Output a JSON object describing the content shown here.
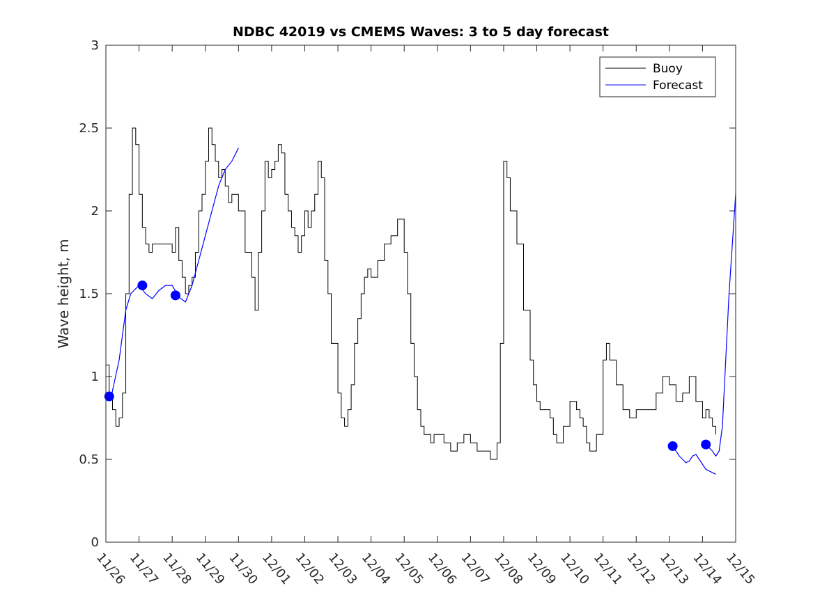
{
  "chart_data": {
    "type": "line",
    "title": "NDBC 42019 vs CMEMS Waves: 3 to 5 day forecast",
    "xlabel": "",
    "ylabel": "Wave height, m",
    "x_unit": "days since 11/26",
    "xlim": [
      0,
      19
    ],
    "ylim": [
      0,
      3
    ],
    "yticks": [
      0,
      0.5,
      1,
      1.5,
      2,
      2.5,
      3
    ],
    "ytick_labels": [
      "0",
      "0.5",
      "1",
      "1.5",
      "2",
      "2.5",
      "3"
    ],
    "xticks": [
      0,
      1,
      2,
      3,
      4,
      5,
      6,
      7,
      8,
      9,
      10,
      11,
      12,
      13,
      14,
      15,
      16,
      17,
      18,
      19
    ],
    "xtick_labels": [
      "11/26",
      "11/27",
      "11/28",
      "11/29",
      "11/30",
      "12/01",
      "12/02",
      "12/03",
      "12/04",
      "12/05",
      "12/06",
      "12/07",
      "12/08",
      "12/09",
      "12/10",
      "12/11",
      "12/12",
      "12/13",
      "12/14",
      "12/15"
    ],
    "grid": false,
    "legend": {
      "position": "top-right",
      "entries": [
        "Buoy",
        "Forecast"
      ]
    },
    "colors": {
      "buoy": "#000000",
      "forecast": "#0000ff",
      "axis": "#262626"
    },
    "series": [
      {
        "name": "Buoy",
        "color": "#000000",
        "x": [
          0,
          0.1,
          0.2,
          0.3,
          0.4,
          0.5,
          0.6,
          0.7,
          0.8,
          0.9,
          1.0,
          1.1,
          1.2,
          1.3,
          1.4,
          1.6,
          1.8,
          2.0,
          2.1,
          2.2,
          2.3,
          2.4,
          2.5,
          2.6,
          2.7,
          2.8,
          2.9,
          3.0,
          3.1,
          3.2,
          3.3,
          3.4,
          3.5,
          3.6,
          3.7,
          3.8,
          4.0,
          4.2,
          4.4,
          4.5,
          4.6,
          4.7,
          4.8,
          4.9,
          5.0,
          5.1,
          5.2,
          5.3,
          5.4,
          5.5,
          5.6,
          5.7,
          5.8,
          5.9,
          6.0,
          6.1,
          6.2,
          6.3,
          6.4,
          6.5,
          6.6,
          6.7,
          6.8,
          7.0,
          7.1,
          7.2,
          7.3,
          7.4,
          7.5,
          7.6,
          7.7,
          7.8,
          7.9,
          8.0,
          8.2,
          8.4,
          8.6,
          8.8,
          9.0,
          9.1,
          9.2,
          9.3,
          9.4,
          9.5,
          9.6,
          9.7,
          9.8,
          9.9,
          10.0,
          10.2,
          10.4,
          10.6,
          10.8,
          11.0,
          11.2,
          11.4,
          11.6,
          11.8,
          11.9,
          12.0,
          12.1,
          12.2,
          12.4,
          12.6,
          12.8,
          12.9,
          13.0,
          13.1,
          13.2,
          13.3,
          13.4,
          13.5,
          13.6,
          13.8,
          14.0,
          14.1,
          14.2,
          14.3,
          14.4,
          14.5,
          14.6,
          14.8,
          15.0,
          15.1,
          15.2,
          15.4,
          15.6,
          15.8,
          16.0,
          16.2,
          16.4,
          16.6,
          16.8,
          17.0,
          17.2,
          17.4,
          17.6,
          17.8,
          18.0,
          18.1,
          18.2,
          18.3,
          18.4
        ],
        "values": [
          1.07,
          0.9,
          0.8,
          0.7,
          0.75,
          0.9,
          1.5,
          2.1,
          2.5,
          2.4,
          2.1,
          1.9,
          1.8,
          1.75,
          1.8,
          1.8,
          1.8,
          1.75,
          1.9,
          1.7,
          1.6,
          1.5,
          1.55,
          1.6,
          1.75,
          2.0,
          2.1,
          2.3,
          2.5,
          2.4,
          2.3,
          2.2,
          2.25,
          2.15,
          2.05,
          2.1,
          2.0,
          1.75,
          1.6,
          1.4,
          1.75,
          2.0,
          2.3,
          2.2,
          2.25,
          2.3,
          2.4,
          2.35,
          2.1,
          2.0,
          1.9,
          1.85,
          1.75,
          1.85,
          2.0,
          1.9,
          2.0,
          2.1,
          2.3,
          2.2,
          1.7,
          1.5,
          1.2,
          0.9,
          0.75,
          0.7,
          0.8,
          0.95,
          1.2,
          1.35,
          1.5,
          1.6,
          1.65,
          1.6,
          1.7,
          1.8,
          1.85,
          1.95,
          1.75,
          1.5,
          1.2,
          1.0,
          0.8,
          0.7,
          0.65,
          0.65,
          0.6,
          0.65,
          0.65,
          0.6,
          0.55,
          0.6,
          0.65,
          0.6,
          0.55,
          0.55,
          0.5,
          0.6,
          1.2,
          2.3,
          2.2,
          2.0,
          1.8,
          1.4,
          1.1,
          0.95,
          0.85,
          0.8,
          0.8,
          0.8,
          0.75,
          0.65,
          0.6,
          0.7,
          0.85,
          0.85,
          0.8,
          0.75,
          0.7,
          0.6,
          0.55,
          0.65,
          1.1,
          1.2,
          1.1,
          0.95,
          0.8,
          0.75,
          0.8,
          0.8,
          0.8,
          0.9,
          1.0,
          0.95,
          0.85,
          0.9,
          1.0,
          0.85,
          0.75,
          0.8,
          0.75,
          0.7,
          0.65
        ]
      },
      {
        "name": "Forecast",
        "color": "#0000ff",
        "segments": [
          {
            "x": [
              0.0,
              0.15,
              0.4,
              0.6,
              0.75,
              0.9,
              1.0,
              1.2,
              1.4,
              1.6,
              1.8,
              2.0,
              2.2,
              2.4,
              2.6,
              2.8,
              3.0,
              3.2,
              3.4,
              3.6,
              3.8,
              4.0
            ],
            "values": [
              0.88,
              0.87,
              1.1,
              1.4,
              1.5,
              1.53,
              1.55,
              1.5,
              1.47,
              1.52,
              1.55,
              1.55,
              1.48,
              1.45,
              1.55,
              1.7,
              1.85,
              2.0,
              2.15,
              2.25,
              2.3,
              2.38
            ]
          },
          {
            "x": [
              17.1,
              17.2,
              17.3,
              17.4,
              17.5,
              17.6,
              17.7,
              17.8,
              17.9,
              18.0,
              18.1,
              18.2,
              18.3,
              18.4
            ],
            "values": [
              0.57,
              0.55,
              0.52,
              0.5,
              0.48,
              0.49,
              0.52,
              0.53,
              0.5,
              0.47,
              0.44,
              0.43,
              0.42,
              0.41
            ]
          },
          {
            "x": [
              18.1,
              18.2,
              18.3,
              18.4,
              18.5,
              18.6,
              18.7,
              18.8,
              18.9,
              19.0
            ],
            "values": [
              0.59,
              0.57,
              0.55,
              0.52,
              0.55,
              0.7,
              1.1,
              1.5,
              1.8,
              2.1
            ]
          }
        ],
        "markers": {
          "x": [
            0.1,
            1.1,
            2.1,
            17.1,
            18.1
          ],
          "values": [
            0.88,
            1.55,
            1.49,
            0.58,
            0.59
          ]
        }
      }
    ]
  }
}
